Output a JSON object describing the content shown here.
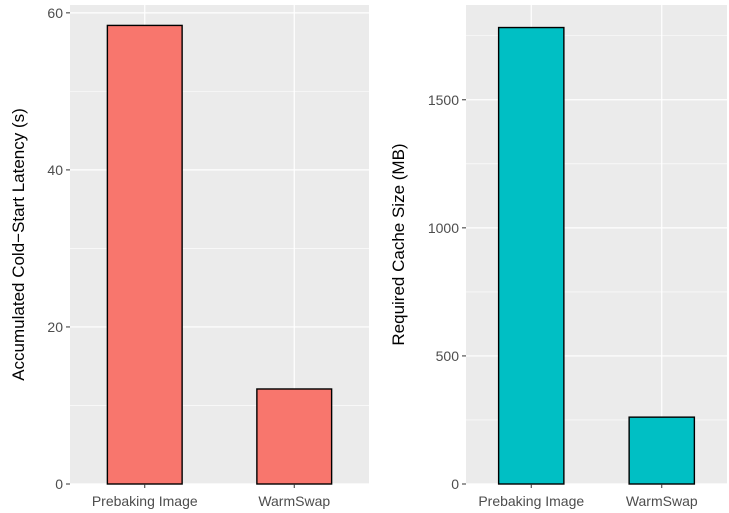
{
  "chart_data": [
    {
      "type": "bar",
      "categories": [
        "Prebaking Image",
        "WarmSwap"
      ],
      "values": [
        58.4,
        12.1
      ],
      "ylabel": "Accumulated Cold−Start Latency (s)",
      "xlabel": "",
      "ylim": [
        0,
        61
      ],
      "yticks": [
        0,
        20,
        40,
        60
      ],
      "bar_color": "#F8766D",
      "grid": true
    },
    {
      "type": "bar",
      "categories": [
        "Prebaking Image",
        "WarmSwap"
      ],
      "values": [
        1782,
        261
      ],
      "ylabel": "Required Cache Size (MB)",
      "xlabel": "",
      "ylim": [
        0,
        1870
      ],
      "yticks": [
        0,
        500,
        1000,
        1500
      ],
      "bar_color": "#00BFC4",
      "grid": true
    }
  ],
  "style": {
    "panel_background": "#EBEBEB",
    "gridline_color": "#FFFFFF",
    "bar_outline_color": "#000000"
  }
}
